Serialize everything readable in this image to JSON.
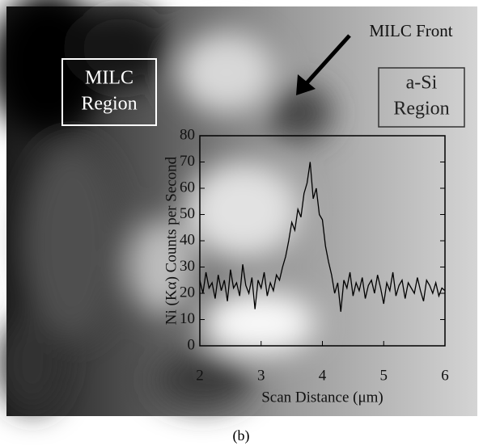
{
  "chart_data": {
    "type": "line",
    "x_label": "Scan Distance (μm)",
    "y_label": "Ni (Kα) Counts per Second",
    "region_labels": [
      [
        "MILC",
        "Region"
      ],
      [
        "a-Si",
        "Region"
      ]
    ],
    "arrow_label": "MILC Front",
    "caption": "(b)",
    "color": "#000000",
    "x": [
      2.0,
      2.05,
      2.1,
      2.15,
      2.2,
      2.25,
      2.3,
      2.35,
      2.4,
      2.45,
      2.5,
      2.55,
      2.6,
      2.65,
      2.7,
      2.75,
      2.8,
      2.85,
      2.9,
      2.95,
      3.0,
      3.05,
      3.1,
      3.15,
      3.2,
      3.25,
      3.3,
      3.35,
      3.4,
      3.45,
      3.5,
      3.55,
      3.6,
      3.65,
      3.7,
      3.75,
      3.8,
      3.85,
      3.9,
      3.95,
      4.0,
      4.05,
      4.1,
      4.15,
      4.2,
      4.25,
      4.3,
      4.35,
      4.4,
      4.45,
      4.5,
      4.55,
      4.6,
      4.65,
      4.7,
      4.75,
      4.8,
      4.85,
      4.9,
      4.95,
      5.0,
      5.05,
      5.1,
      5.15,
      5.2,
      5.25,
      5.3,
      5.35,
      5.4,
      5.45,
      5.5,
      5.55,
      5.6,
      5.65,
      5.7,
      5.75,
      5.8,
      5.85,
      5.9,
      5.95,
      6.0
    ],
    "values": [
      25,
      20,
      28,
      22,
      24,
      18,
      27,
      21,
      25,
      17,
      29,
      22,
      24,
      19,
      31,
      23,
      20,
      26,
      14,
      25,
      22,
      28,
      19,
      24,
      21,
      27,
      25,
      30,
      34,
      40,
      47,
      44,
      52,
      49,
      58,
      62,
      70,
      56,
      60,
      50,
      48,
      38,
      32,
      27,
      20,
      24,
      13,
      25,
      22,
      28,
      19,
      24,
      21,
      26,
      18,
      23,
      25,
      20,
      27,
      22,
      16,
      24,
      21,
      28,
      19,
      23,
      25,
      18,
      24,
      22,
      20,
      26,
      21,
      17,
      25,
      23,
      20,
      24,
      19,
      22,
      21
    ],
    "xlim": [
      2,
      6
    ],
    "xticks": [
      2,
      3,
      4,
      5,
      6
    ],
    "ylim": [
      0,
      80
    ],
    "yticks": [
      0,
      10,
      20,
      30,
      40,
      50,
      60,
      70,
      80
    ]
  }
}
